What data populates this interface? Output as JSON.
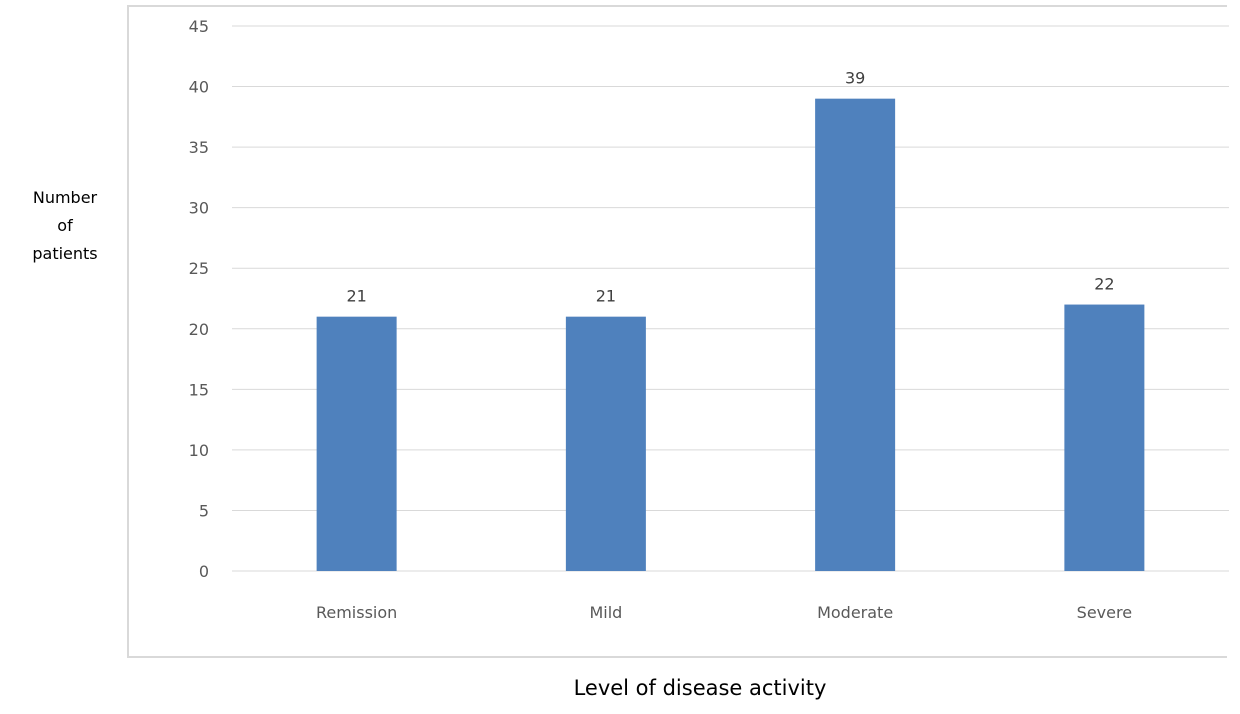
{
  "chart_data": {
    "type": "bar",
    "title": "",
    "xlabel": "Level of disease activity",
    "ylabel_lines": [
      "Number",
      "of",
      "patients"
    ],
    "categories": [
      "Remission",
      "Mild",
      "Moderate",
      "Severe"
    ],
    "values": [
      21,
      21,
      39,
      22
    ],
    "data_labels": [
      "21",
      "21",
      "39",
      "22"
    ],
    "ylim": [
      0,
      45
    ],
    "yticks": [
      0,
      5,
      10,
      15,
      20,
      25,
      30,
      35,
      40,
      45
    ],
    "grid": true,
    "legend": "none",
    "bar_color": "#4f81bd",
    "grid_color": "#d9d9d9"
  }
}
